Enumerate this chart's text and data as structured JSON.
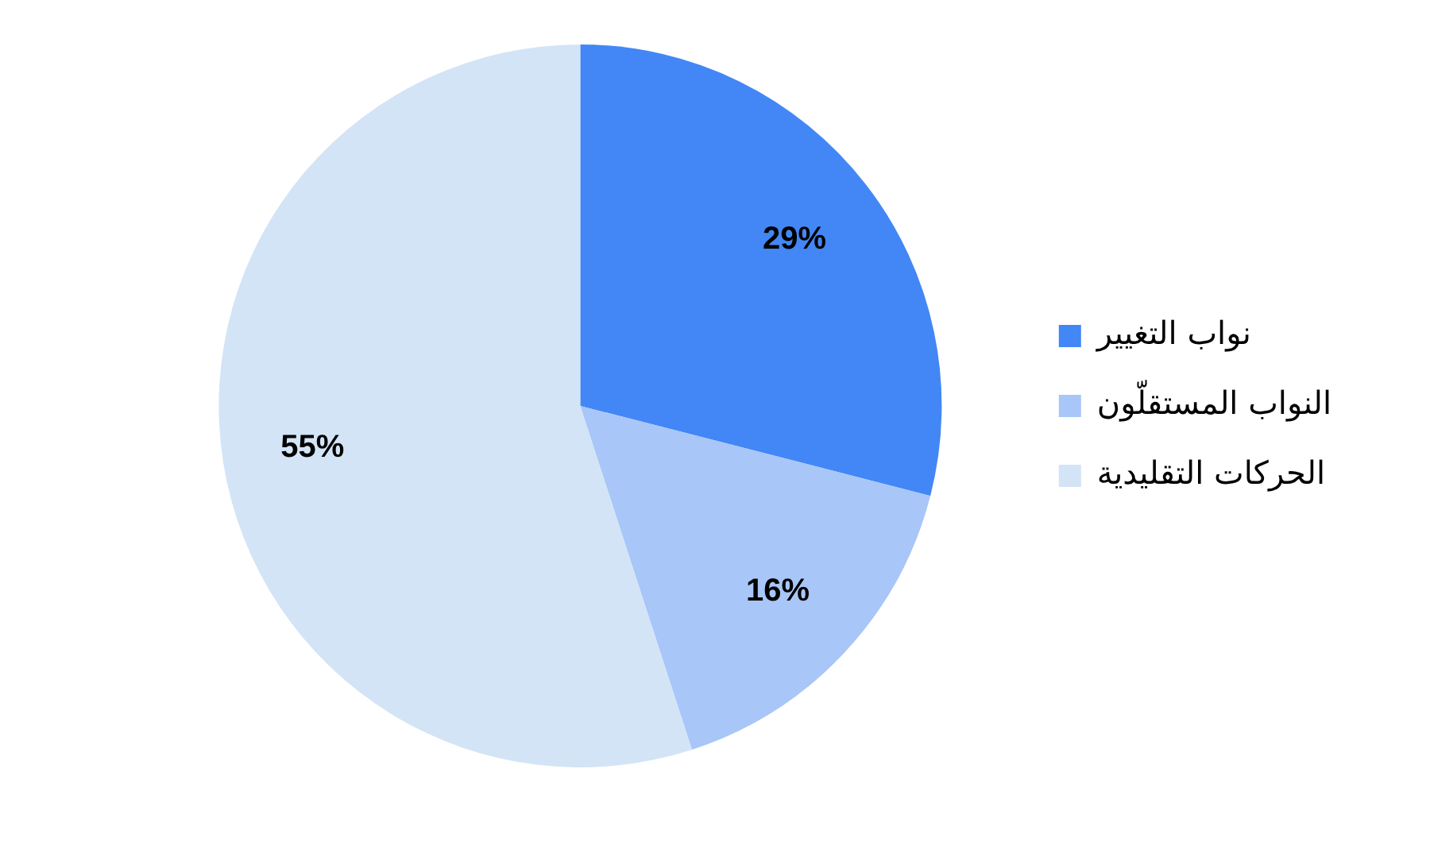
{
  "chart_data": {
    "type": "pie",
    "categories": [
      "نواب التغيير",
      "النواب المستقلّون",
      "الحركات التقليدية"
    ],
    "values": [
      29,
      16,
      55
    ],
    "colors": [
      "#4287f5",
      "#a8c6f7",
      "#d3e4f6"
    ],
    "value_labels": [
      "29%",
      "16%",
      "55%"
    ],
    "legend": "right"
  }
}
